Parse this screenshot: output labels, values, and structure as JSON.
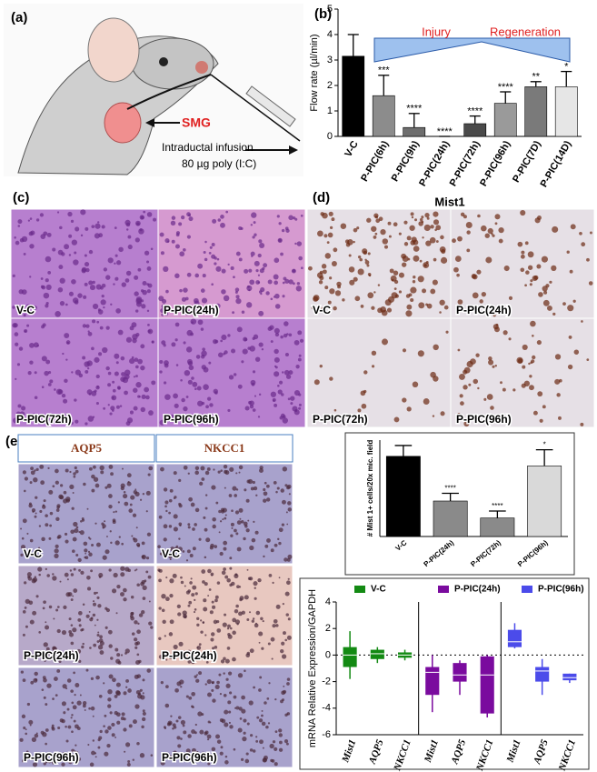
{
  "figure": {
    "a": {
      "label": "(a)",
      "gland": "SMG",
      "infusion": "Intraductal infusion",
      "dose": "80 µg poly (I:C)"
    },
    "b": {
      "label": "(b)"
    },
    "c": {
      "label": "(c)",
      "panels": [
        "V-C",
        "P-PIC(24h)",
        "P-PIC(72h)",
        "P-PIC(96h)"
      ]
    },
    "d": {
      "label": "(d)",
      "title": "Mist1",
      "panels": [
        "V-C",
        "P-PIC(24h)",
        "P-PIC(72h)",
        "P-PIC(96h)"
      ]
    },
    "e": {
      "label": "(e)",
      "columns": [
        "AQP5",
        "NKCC1"
      ],
      "rows": [
        "V-C",
        "P-PIC(24h)",
        "P-PIC(96h)"
      ]
    }
  },
  "chart_data": [
    {
      "type": "bar",
      "ylabel": "Flow rate (µl/min)",
      "categories": [
        "V-C",
        "P-PIC(6h)",
        "P-PIC(9h)",
        "P-PIC(24h)",
        "P-PIC(72h)",
        "P-PIC(96h)",
        "P-PIC(7D)",
        "P-PIC(14D)"
      ],
      "values": [
        3.15,
        1.6,
        0.35,
        0.0,
        0.5,
        1.3,
        1.95,
        1.95
      ],
      "errors": [
        0.85,
        0.8,
        0.55,
        0.0,
        0.3,
        0.45,
        0.2,
        0.6
      ],
      "sig_labels": [
        null,
        "***",
        "****",
        "****",
        "****",
        "****",
        "**",
        "*"
      ],
      "colors": [
        "#000000",
        "#8c8c8c",
        "#6e6e6e",
        "#555555",
        "#4a4a4a",
        "#9a9a9a",
        "#7a7a7a",
        "#e6e6e6"
      ],
      "annotations": [
        "Injury",
        "Regeneration"
      ],
      "ylim": [
        0,
        5
      ],
      "yticks": [
        0,
        1,
        2,
        3,
        4,
        5
      ]
    },
    {
      "type": "bar",
      "ylabel": "# Mist 1+ cells/20x mic. field",
      "categories": [
        "V-C",
        "P-PIC(24h)",
        "P-PIC(72h)",
        "P-PIC(96h)"
      ],
      "values": [
        208,
        92,
        48,
        183
      ],
      "errors": [
        28,
        20,
        18,
        42
      ],
      "sig_labels": [
        null,
        "****",
        "****",
        "*"
      ],
      "colors": [
        "#000000",
        "#8a8a8a",
        "#8a8a8a",
        "#d9d9d9"
      ],
      "ylim": [
        0,
        250
      ]
    },
    {
      "type": "box",
      "ylabel": "mRNA Relative Expression/GAPDH",
      "categories": [
        "Mist1",
        "AQP5",
        "NKCC1"
      ],
      "ylim": [
        -6,
        4
      ],
      "yticks": [
        -6,
        -4,
        -2,
        0,
        2,
        4
      ],
      "series": [
        {
          "name": "V-C",
          "color": "#138a13",
          "min": [
            -1.8,
            -0.6,
            -0.4
          ],
          "q1": [
            -0.9,
            -0.3,
            -0.2
          ],
          "median": [
            0.0,
            0.1,
            0.0
          ],
          "q3": [
            0.6,
            0.4,
            0.2
          ],
          "max": [
            1.8,
            0.6,
            0.4
          ]
        },
        {
          "name": "P-PIC(24h)",
          "color": "#7a0b9e",
          "min": [
            -4.3,
            -3.0,
            -4.7
          ],
          "q1": [
            -3.0,
            -2.0,
            -4.4
          ],
          "median": [
            -1.3,
            -1.5,
            -1.5
          ],
          "q3": [
            -0.9,
            -0.6,
            -0.1
          ],
          "max": [
            0.0,
            -0.4,
            0.0
          ]
        },
        {
          "name": "P-PIC(96h)",
          "color": "#4b4bea",
          "min": [
            0.5,
            -3.0,
            -2.1
          ],
          "q1": [
            0.6,
            -2.0,
            -1.9
          ],
          "median": [
            1.0,
            -1.2,
            -1.7
          ],
          "q3": [
            1.9,
            -0.9,
            -1.4
          ],
          "max": [
            2.4,
            -0.3,
            -1.4
          ]
        }
      ]
    }
  ]
}
